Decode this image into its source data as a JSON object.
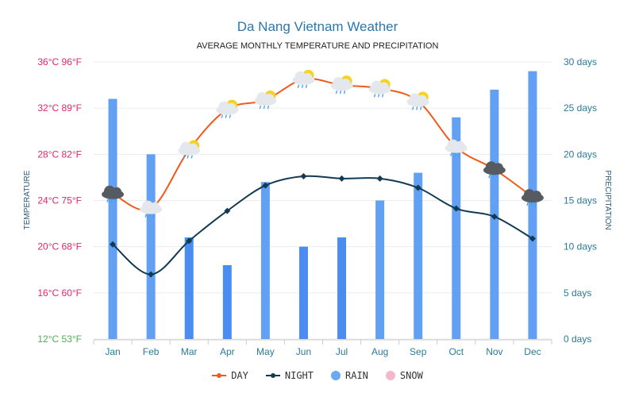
{
  "chart_data": {
    "type": "line",
    "title": "Da Nang Vietnam Weather",
    "subtitle": "AVERAGE MONTHLY TEMPERATURE AND PRECIPITATION",
    "ylabel_left": "TEMPERATURE",
    "ylabel_right": "PRECIPITATION",
    "categories": [
      "Jan",
      "Feb",
      "Mar",
      "Apr",
      "May",
      "Jun",
      "Jul",
      "Aug",
      "Sep",
      "Oct",
      "Nov",
      "Dec"
    ],
    "left_ticks": [
      {
        "value": 36,
        "label": "36°C 96°F"
      },
      {
        "value": 32,
        "label": "32°C 89°F"
      },
      {
        "value": 28,
        "label": "28°C 82°F"
      },
      {
        "value": 24,
        "label": "24°C 75°F"
      },
      {
        "value": 20,
        "label": "20°C 68°F"
      },
      {
        "value": 16,
        "label": "16°C 60°F"
      },
      {
        "value": 12,
        "label": "12°C 53°F"
      }
    ],
    "right_ticks": [
      {
        "value": 30,
        "label": "30 days"
      },
      {
        "value": 25,
        "label": "25 days"
      },
      {
        "value": 20,
        "label": "20 days"
      },
      {
        "value": 15,
        "label": "15 days"
      },
      {
        "value": 10,
        "label": "10 days"
      },
      {
        "value": 5,
        "label": "5 days"
      },
      {
        "value": 0,
        "label": "0 days"
      }
    ],
    "ylim_left": [
      12,
      36
    ],
    "ylim_right": [
      0,
      30
    ],
    "series": [
      {
        "name": "DAY",
        "type": "line",
        "color": "#f05a1a",
        "values": [
          24.6,
          23.3,
          28.4,
          31.9,
          32.7,
          34.5,
          34.0,
          33.7,
          32.6,
          28.6,
          26.7,
          24.3
        ]
      },
      {
        "name": "NIGHT",
        "type": "line",
        "color": "#123a52",
        "values": [
          20.2,
          17.6,
          20.5,
          23.1,
          25.3,
          26.1,
          25.9,
          25.9,
          25.1,
          23.3,
          22.6,
          20.7
        ]
      },
      {
        "name": "RAIN",
        "type": "bar",
        "color": "#5b9cf3",
        "values": [
          26,
          20,
          11,
          8,
          17,
          10,
          11,
          15,
          18,
          24,
          27,
          29
        ]
      },
      {
        "name": "SNOW",
        "type": "bar",
        "color": "#f6b8c8",
        "values": [
          0,
          0,
          0,
          0,
          0,
          0,
          0,
          0,
          0,
          0,
          0,
          0
        ]
      }
    ],
    "weather_icons": [
      "rain-cloud",
      "cloud-rain",
      "sun-cloud-rain",
      "sun-cloud-rain",
      "sun-cloud-rain",
      "sun-cloud-rain",
      "sun-cloud-rain",
      "sun-cloud-rain",
      "sun-cloud-rain",
      "cloud-rain",
      "rain-cloud",
      "rain-cloud"
    ],
    "legend": [
      "DAY",
      "NIGHT",
      "RAIN",
      "SNOW"
    ],
    "legend_position": "bottom",
    "grid": true
  }
}
